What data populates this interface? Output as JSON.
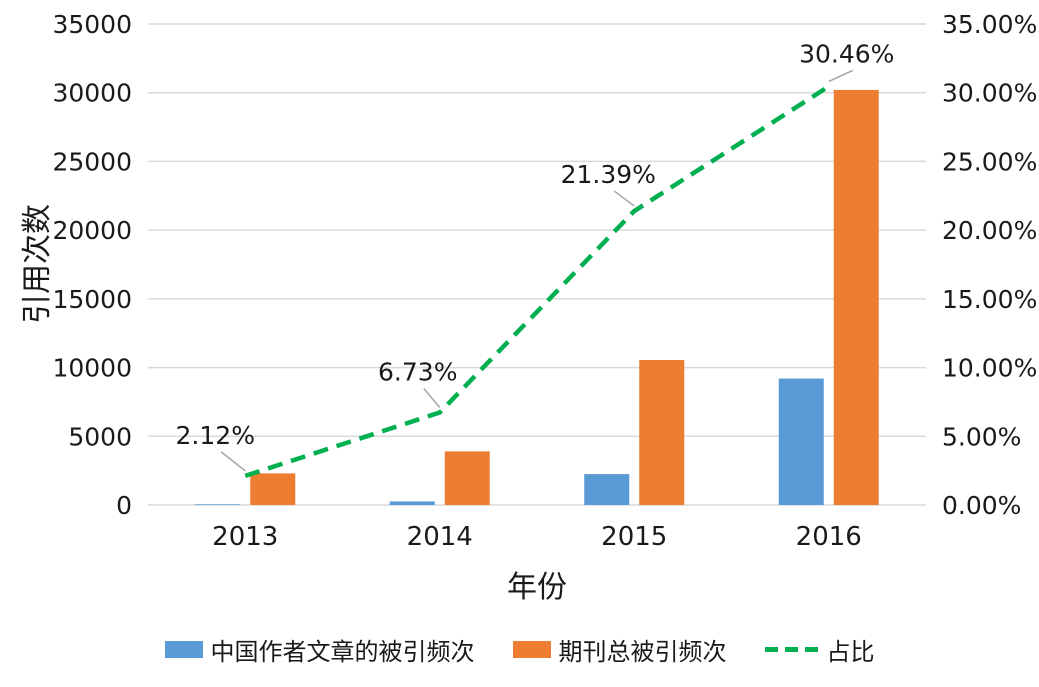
{
  "chart_data": {
    "type": "bar",
    "combo": "bar+line",
    "title": "",
    "categories": [
      "2013",
      "2014",
      "2015",
      "2016"
    ],
    "series": [
      {
        "name": "中国作者文章的被引频次",
        "type": "bar",
        "color": "#5B9BD5",
        "axis": "left",
        "values": [
          50,
          260,
          2250,
          9200
        ]
      },
      {
        "name": "期刊总被引频次",
        "type": "bar",
        "color": "#ED7D31",
        "axis": "left",
        "values": [
          2300,
          3900,
          10550,
          30200
        ]
      },
      {
        "name": "占比",
        "type": "line",
        "dashed": true,
        "color": "#00B050",
        "axis": "right",
        "values": [
          2.12,
          6.73,
          21.39,
          30.46
        ],
        "labels": [
          "2.12%",
          "6.73%",
          "21.39%",
          "30.46%"
        ]
      }
    ],
    "left_axis": {
      "title": "引用次数",
      "min": 0,
      "max": 35000,
      "step": 5000,
      "tick_labels": [
        "0",
        "5000",
        "10000",
        "15000",
        "20000",
        "25000",
        "30000",
        "35000"
      ]
    },
    "right_axis": {
      "min": 0,
      "max": 35,
      "step": 5,
      "tick_labels": [
        "0.00%",
        "5.00%",
        "10.00%",
        "15.00%",
        "20.00%",
        "25.00%",
        "30.00%",
        "35.00%"
      ]
    },
    "x_axis": {
      "title": "年份"
    },
    "grid": true,
    "gridline_color": "#D9D9D9",
    "leader_color": "#A6A6A6",
    "legend_position": "bottom"
  }
}
